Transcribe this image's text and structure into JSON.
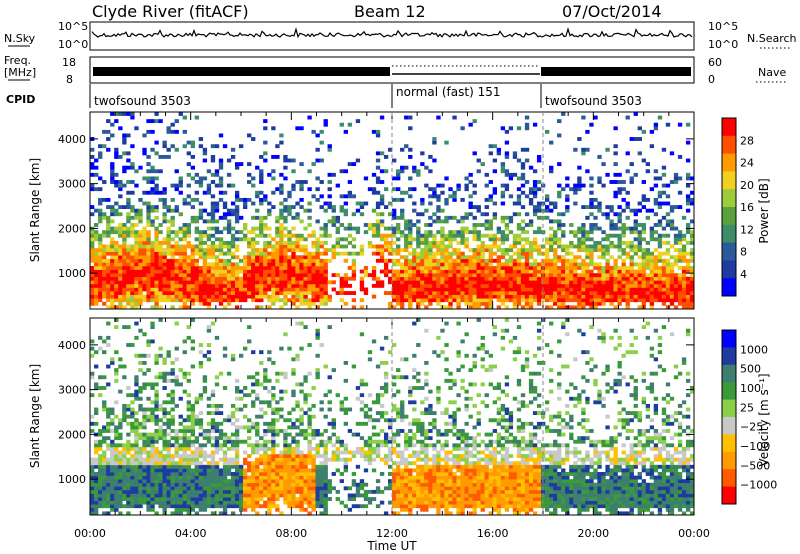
{
  "header": {
    "station": "Clyde River (fitACF)",
    "beam": "Beam 12",
    "date": "07/Oct/2014"
  },
  "noise_panel": {
    "left_label": "N.Sky",
    "left_tick_top": "10^5",
    "left_tick_bottom": "10^0",
    "right_label": "N.Search",
    "right_tick_top": "10^5",
    "right_tick_bottom": "10^0"
  },
  "freq_panel": {
    "left_label_1": "Freq.",
    "left_label_2": "[MHz]",
    "left_tick_top": "18",
    "left_tick_bottom": "8",
    "right_label": "Nave",
    "right_tick_top": "60",
    "right_tick_bottom": "0"
  },
  "cpid": {
    "label": "CPID",
    "segments": [
      {
        "name": "twofsound 3503",
        "start_hr": 0,
        "end_hr": 12
      },
      {
        "name": "normal (fast) 151",
        "start_hr": 12,
        "end_hr": 18
      },
      {
        "name": "twofsound 3503",
        "start_hr": 18,
        "end_hr": 24
      }
    ]
  },
  "colors": {
    "power": [
      "#0000ff",
      "#1e3ca0",
      "#2a5a98",
      "#3d8c6a",
      "#5aa03c",
      "#9ccc3c",
      "#f0d020",
      "#ff9a00",
      "#ff5000",
      "#ff0000"
    ],
    "velocity": [
      "#ff0000",
      "#ff5a00",
      "#ff9a00",
      "#ffc000",
      "#c8c8c8",
      "#8cd04a",
      "#3a9a3a",
      "#3d7e6e",
      "#1e3ca0",
      "#0000ff"
    ]
  },
  "chart_data": [
    {
      "type": "heatmap",
      "name": "power",
      "ylabel": "Slant Range [km]",
      "xlabel": "Time UT",
      "xlim": [
        0,
        24
      ],
      "ylim": [
        200,
        4600
      ],
      "x_ticks": [
        "00:00",
        "04:00",
        "08:00",
        "12:00",
        "16:00",
        "20:00",
        "00:00"
      ],
      "y_ticks": [
        1000,
        2000,
        3000,
        4000
      ],
      "colorbar": {
        "label": "Power [dB]",
        "ticks": [
          "4",
          "8",
          "12",
          "16",
          "20",
          "24",
          "28"
        ]
      }
    },
    {
      "type": "heatmap",
      "name": "velocity",
      "ylabel": "Slant Range [km]",
      "xlabel": "Time UT",
      "xlim": [
        0,
        24
      ],
      "ylim": [
        200,
        4600
      ],
      "x_ticks": [
        "00:00",
        "04:00",
        "08:00",
        "12:00",
        "16:00",
        "20:00",
        "00:00"
      ],
      "y_ticks": [
        1000,
        2000,
        3000,
        4000
      ],
      "colorbar": {
        "label": "Velocity [m s⁻¹]",
        "ticks": [
          "1000",
          "500",
          "100",
          "25",
          "−25",
          "−100",
          "−500",
          "−1000"
        ]
      }
    }
  ]
}
